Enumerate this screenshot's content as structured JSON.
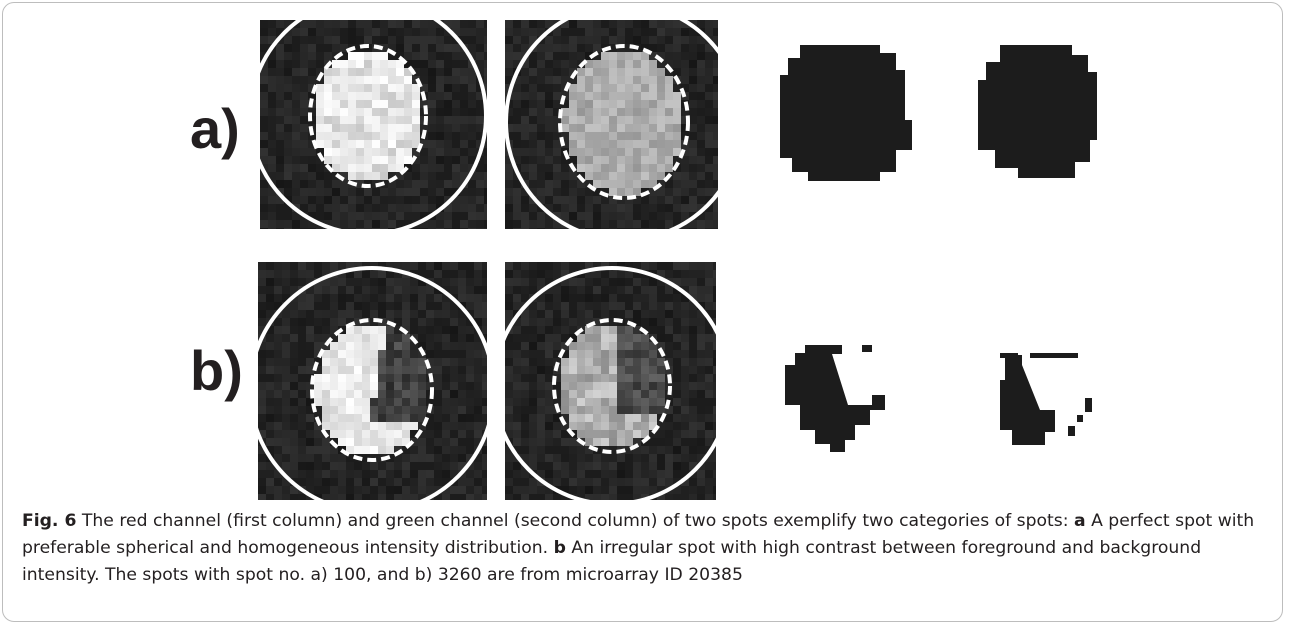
{
  "panels": [
    {
      "label": "a)"
    },
    {
      "label": "b)"
    }
  ],
  "caption": {
    "figure_label": "Fig. 6",
    "text_1": " The red channel (first column) and green channel (second column) of two spots exemplify two categories of spots: ",
    "a_label": "a",
    "text_2": " A perfect spot with preferable spherical and homogeneous intensity distribution. ",
    "b_label": "b",
    "text_3": " An irregular spot with high contrast between foreground and background intensity. The spots with spot no. a) 100, and b) 3260 are from microarray ID 20385"
  }
}
